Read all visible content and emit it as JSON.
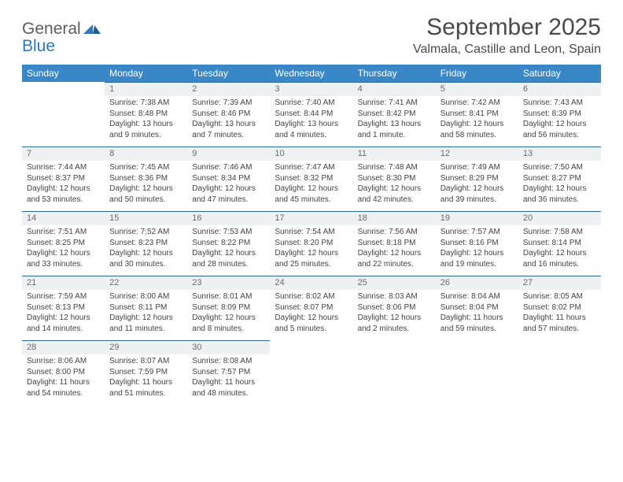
{
  "colors": {
    "header_bg": "#3a87c8",
    "header_text": "#ffffff",
    "daynum_bg": "#eef1f3",
    "daynum_border": "#2f6aa3",
    "daynum_text": "#6b6b6b",
    "body_text": "#444444",
    "logo_gray": "#5c5c5c",
    "logo_blue": "#2f77bb",
    "title_text": "#4a4a4a"
  },
  "logo": {
    "word1": "General",
    "word2": "Blue"
  },
  "title": "September 2025",
  "location": "Valmala, Castille and Leon, Spain",
  "day_headers": [
    "Sunday",
    "Monday",
    "Tuesday",
    "Wednesday",
    "Thursday",
    "Friday",
    "Saturday"
  ],
  "weeks": [
    [
      null,
      {
        "n": "1",
        "sunrise": "Sunrise: 7:38 AM",
        "sunset": "Sunset: 8:48 PM",
        "daylight": "Daylight: 13 hours and 9 minutes."
      },
      {
        "n": "2",
        "sunrise": "Sunrise: 7:39 AM",
        "sunset": "Sunset: 8:46 PM",
        "daylight": "Daylight: 13 hours and 7 minutes."
      },
      {
        "n": "3",
        "sunrise": "Sunrise: 7:40 AM",
        "sunset": "Sunset: 8:44 PM",
        "daylight": "Daylight: 13 hours and 4 minutes."
      },
      {
        "n": "4",
        "sunrise": "Sunrise: 7:41 AM",
        "sunset": "Sunset: 8:42 PM",
        "daylight": "Daylight: 13 hours and 1 minute."
      },
      {
        "n": "5",
        "sunrise": "Sunrise: 7:42 AM",
        "sunset": "Sunset: 8:41 PM",
        "daylight": "Daylight: 12 hours and 58 minutes."
      },
      {
        "n": "6",
        "sunrise": "Sunrise: 7:43 AM",
        "sunset": "Sunset: 8:39 PM",
        "daylight": "Daylight: 12 hours and 56 minutes."
      }
    ],
    [
      {
        "n": "7",
        "sunrise": "Sunrise: 7:44 AM",
        "sunset": "Sunset: 8:37 PM",
        "daylight": "Daylight: 12 hours and 53 minutes."
      },
      {
        "n": "8",
        "sunrise": "Sunrise: 7:45 AM",
        "sunset": "Sunset: 8:36 PM",
        "daylight": "Daylight: 12 hours and 50 minutes."
      },
      {
        "n": "9",
        "sunrise": "Sunrise: 7:46 AM",
        "sunset": "Sunset: 8:34 PM",
        "daylight": "Daylight: 12 hours and 47 minutes."
      },
      {
        "n": "10",
        "sunrise": "Sunrise: 7:47 AM",
        "sunset": "Sunset: 8:32 PM",
        "daylight": "Daylight: 12 hours and 45 minutes."
      },
      {
        "n": "11",
        "sunrise": "Sunrise: 7:48 AM",
        "sunset": "Sunset: 8:30 PM",
        "daylight": "Daylight: 12 hours and 42 minutes."
      },
      {
        "n": "12",
        "sunrise": "Sunrise: 7:49 AM",
        "sunset": "Sunset: 8:29 PM",
        "daylight": "Daylight: 12 hours and 39 minutes."
      },
      {
        "n": "13",
        "sunrise": "Sunrise: 7:50 AM",
        "sunset": "Sunset: 8:27 PM",
        "daylight": "Daylight: 12 hours and 36 minutes."
      }
    ],
    [
      {
        "n": "14",
        "sunrise": "Sunrise: 7:51 AM",
        "sunset": "Sunset: 8:25 PM",
        "daylight": "Daylight: 12 hours and 33 minutes."
      },
      {
        "n": "15",
        "sunrise": "Sunrise: 7:52 AM",
        "sunset": "Sunset: 8:23 PM",
        "daylight": "Daylight: 12 hours and 30 minutes."
      },
      {
        "n": "16",
        "sunrise": "Sunrise: 7:53 AM",
        "sunset": "Sunset: 8:22 PM",
        "daylight": "Daylight: 12 hours and 28 minutes."
      },
      {
        "n": "17",
        "sunrise": "Sunrise: 7:54 AM",
        "sunset": "Sunset: 8:20 PM",
        "daylight": "Daylight: 12 hours and 25 minutes."
      },
      {
        "n": "18",
        "sunrise": "Sunrise: 7:56 AM",
        "sunset": "Sunset: 8:18 PM",
        "daylight": "Daylight: 12 hours and 22 minutes."
      },
      {
        "n": "19",
        "sunrise": "Sunrise: 7:57 AM",
        "sunset": "Sunset: 8:16 PM",
        "daylight": "Daylight: 12 hours and 19 minutes."
      },
      {
        "n": "20",
        "sunrise": "Sunrise: 7:58 AM",
        "sunset": "Sunset: 8:14 PM",
        "daylight": "Daylight: 12 hours and 16 minutes."
      }
    ],
    [
      {
        "n": "21",
        "sunrise": "Sunrise: 7:59 AM",
        "sunset": "Sunset: 8:13 PM",
        "daylight": "Daylight: 12 hours and 14 minutes."
      },
      {
        "n": "22",
        "sunrise": "Sunrise: 8:00 AM",
        "sunset": "Sunset: 8:11 PM",
        "daylight": "Daylight: 12 hours and 11 minutes."
      },
      {
        "n": "23",
        "sunrise": "Sunrise: 8:01 AM",
        "sunset": "Sunset: 8:09 PM",
        "daylight": "Daylight: 12 hours and 8 minutes."
      },
      {
        "n": "24",
        "sunrise": "Sunrise: 8:02 AM",
        "sunset": "Sunset: 8:07 PM",
        "daylight": "Daylight: 12 hours and 5 minutes."
      },
      {
        "n": "25",
        "sunrise": "Sunrise: 8:03 AM",
        "sunset": "Sunset: 8:06 PM",
        "daylight": "Daylight: 12 hours and 2 minutes."
      },
      {
        "n": "26",
        "sunrise": "Sunrise: 8:04 AM",
        "sunset": "Sunset: 8:04 PM",
        "daylight": "Daylight: 11 hours and 59 minutes."
      },
      {
        "n": "27",
        "sunrise": "Sunrise: 8:05 AM",
        "sunset": "Sunset: 8:02 PM",
        "daylight": "Daylight: 11 hours and 57 minutes."
      }
    ],
    [
      {
        "n": "28",
        "sunrise": "Sunrise: 8:06 AM",
        "sunset": "Sunset: 8:00 PM",
        "daylight": "Daylight: 11 hours and 54 minutes."
      },
      {
        "n": "29",
        "sunrise": "Sunrise: 8:07 AM",
        "sunset": "Sunset: 7:59 PM",
        "daylight": "Daylight: 11 hours and 51 minutes."
      },
      {
        "n": "30",
        "sunrise": "Sunrise: 8:08 AM",
        "sunset": "Sunset: 7:57 PM",
        "daylight": "Daylight: 11 hours and 48 minutes."
      },
      null,
      null,
      null,
      null
    ]
  ]
}
